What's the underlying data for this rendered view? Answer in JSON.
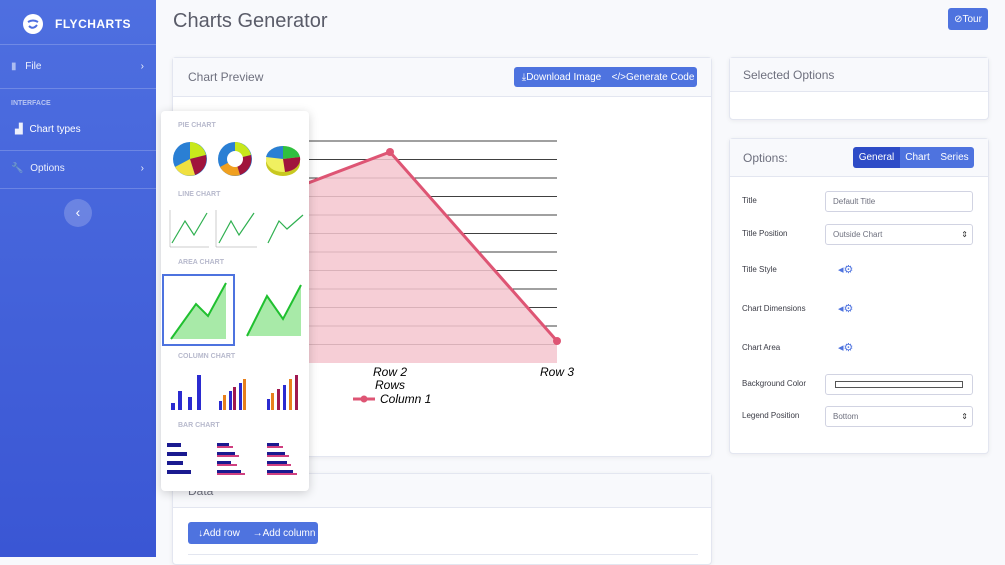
{
  "sidebar": {
    "brand": "FLYCHARTS",
    "file": "File",
    "section_heading": "INTERFACE",
    "chart_types": "Chart types",
    "options": "Options"
  },
  "header": {
    "title": "Charts Generator",
    "tour_button": "Tour"
  },
  "chart_preview": {
    "title": "Chart Preview",
    "buttons": [
      "Download Image",
      "Generate Code"
    ],
    "chart": {
      "categories": [
        "Row 2",
        "Row 3"
      ],
      "x_label": "Rows",
      "legend": "Column 1"
    }
  },
  "chart_type_menu": {
    "sections": [
      "PIE CHART",
      "LINE CHART",
      "AREA CHART",
      "COLUMN CHART",
      "BAR CHART"
    ]
  },
  "selected_options": {
    "title": "Selected Options"
  },
  "options": {
    "title": "Options:",
    "tabs": [
      "General",
      "Chart",
      "Series"
    ],
    "fields": [
      {
        "label": "Title",
        "placeholder": "Default Title"
      },
      {
        "label": "Title Position",
        "value": "Outside Chart"
      },
      {
        "label": "Title Style"
      },
      {
        "label": "Chart Dimensions"
      },
      {
        "label": "Chart Area"
      },
      {
        "label": "Background Color"
      },
      {
        "label": "Legend Position",
        "value": "Bottom"
      }
    ]
  },
  "data": {
    "title": "Data",
    "buttons": [
      "Add row",
      "Add column"
    ]
  }
}
